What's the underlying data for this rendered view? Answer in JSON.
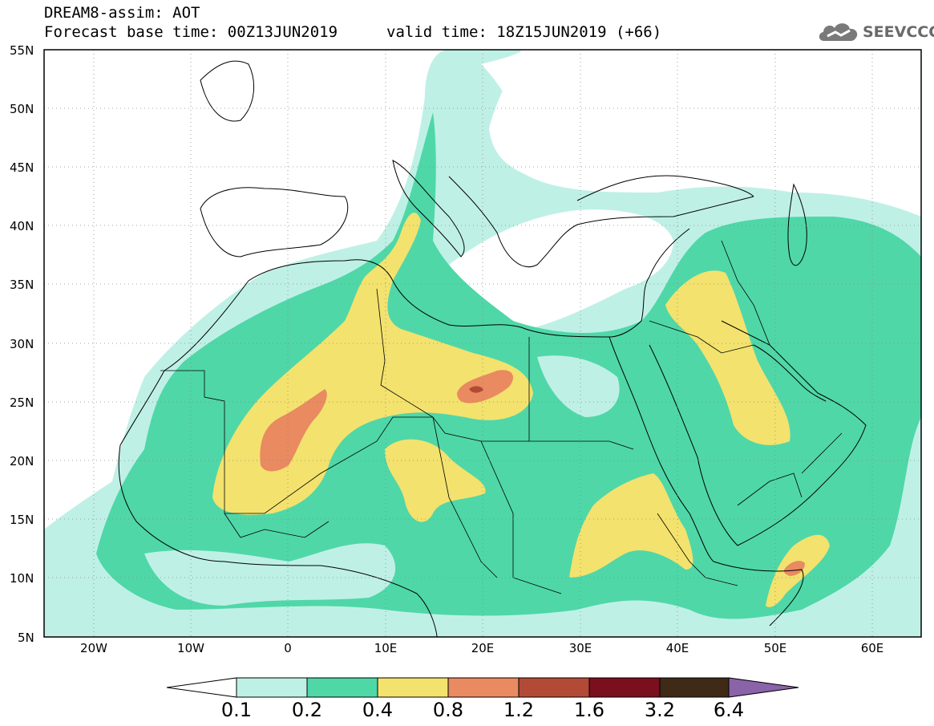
{
  "header": {
    "model_line": "DREAM8-assim: AOT",
    "base_time": "Forecast base time: 00Z13JUN2019",
    "valid_time": "valid time: 18Z15JUN2019 (+66)"
  },
  "logo": {
    "text": "SEEVCCC",
    "icon": "cloud-icon"
  },
  "axes": {
    "lat_ticks": [
      "55N",
      "50N",
      "45N",
      "40N",
      "35N",
      "30N",
      "25N",
      "20N",
      "15N",
      "10N",
      "5N"
    ],
    "lon_ticks": [
      "20W",
      "10W",
      "0",
      "10E",
      "20E",
      "30E",
      "40E",
      "50E",
      "60E"
    ]
  },
  "colorbar": {
    "labels": [
      "0.1",
      "0.2",
      "0.4",
      "0.8",
      "1.2",
      "1.6",
      "3.2",
      "6.4"
    ],
    "colors": [
      "#ffffff",
      "#bff0e6",
      "#4fd7a8",
      "#f3e26e",
      "#e98a60",
      "#b34a36",
      "#7a0f1e",
      "#3f2a17",
      "#8a63a8"
    ]
  },
  "map_colors": {
    "c1": "#bff0e6",
    "c2": "#4fd7a8",
    "c3": "#f3e26e",
    "c4": "#e98a60",
    "c5": "#b34a36"
  }
}
